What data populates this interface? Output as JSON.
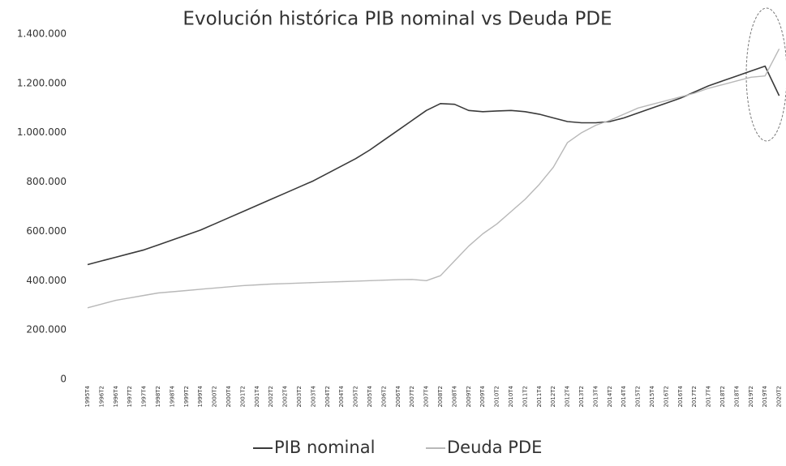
{
  "chart_data": {
    "type": "line",
    "title": "Evolución histórica PIB nominal vs Deuda PDE",
    "categories": [
      "1995T4",
      "1996T2",
      "1996T4",
      "1997T2",
      "1997T4",
      "1998T2",
      "1998T4",
      "1999T2",
      "1999T4",
      "2000T2",
      "2000T4",
      "2001T2",
      "2001T4",
      "2002T2",
      "2002T4",
      "2003T2",
      "2003T4",
      "2004T2",
      "2004T4",
      "2005T2",
      "2005T4",
      "2006T2",
      "2006T4",
      "2007T2",
      "2007T4",
      "2008T2",
      "2008T4",
      "2009T2",
      "2009T4",
      "2010T2",
      "2010T4",
      "2011T2",
      "2011T4",
      "2012T2",
      "2012T4",
      "2013T2",
      "2013T4",
      "2014T2",
      "2014T4",
      "2015T2",
      "2015T4",
      "2016T2",
      "2016T4",
      "2017T2",
      "2017T4",
      "2018T2",
      "2018T4",
      "2019T2",
      "2019T4",
      "2020T2"
    ],
    "series": [
      {
        "name": "PIB nominal",
        "color": "#3a3a3a",
        "values": [
          465000,
          480000,
          495000,
          510000,
          525000,
          545000,
          565000,
          585000,
          605000,
          630000,
          655000,
          680000,
          705000,
          730000,
          755000,
          780000,
          805000,
          835000,
          865000,
          895000,
          930000,
          970000,
          1010000,
          1050000,
          1090000,
          1118000,
          1115000,
          1090000,
          1085000,
          1088000,
          1090000,
          1085000,
          1075000,
          1060000,
          1045000,
          1040000,
          1040000,
          1045000,
          1060000,
          1080000,
          1100000,
          1120000,
          1140000,
          1165000,
          1190000,
          1210000,
          1230000,
          1250000,
          1270000,
          1150000
        ]
      },
      {
        "name": "Deuda PDE",
        "color": "#b8b8b8",
        "values": [
          290000,
          305000,
          320000,
          330000,
          340000,
          350000,
          355000,
          360000,
          365000,
          370000,
          375000,
          380000,
          383000,
          386000,
          388000,
          390000,
          392000,
          394000,
          396000,
          398000,
          400000,
          402000,
          404000,
          405000,
          400000,
          420000,
          480000,
          540000,
          590000,
          630000,
          680000,
          730000,
          790000,
          860000,
          960000,
          1000000,
          1030000,
          1050000,
          1075000,
          1100000,
          1115000,
          1130000,
          1145000,
          1160000,
          1180000,
          1195000,
          1210000,
          1225000,
          1230000,
          1340000
        ]
      }
    ],
    "ylim": [
      0,
      1400000
    ],
    "yticks": [
      0,
      {
        "value": 200000,
        "label": "200.000"
      },
      {
        "value": 400000,
        "label": "400.000"
      },
      {
        "value": 600000,
        "label": "600.000"
      },
      {
        "value": 800000,
        "label": "800.000"
      },
      {
        "value": 1000000,
        "label": "1.000.000"
      },
      {
        "value": 1200000,
        "label": "1.200.000"
      },
      {
        "value": 1400000,
        "label": "1.400.000"
      }
    ],
    "grid": false,
    "legend": "bottom"
  }
}
